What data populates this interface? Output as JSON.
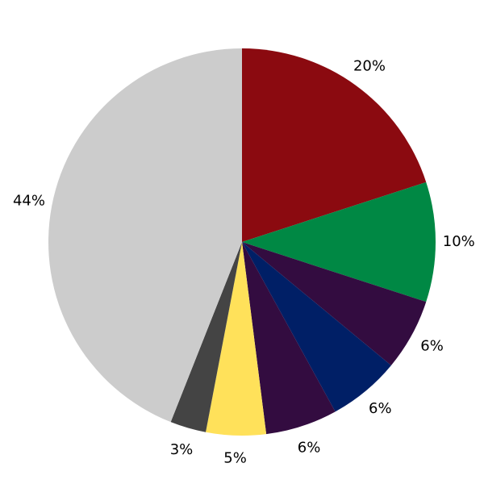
{
  "chart_data": {
    "type": "pie",
    "start_angle": "top, clockwise",
    "values": [
      20,
      10,
      6,
      6,
      6,
      5,
      3,
      44
    ],
    "labels": [
      "20%",
      "10%",
      "6%",
      "6%",
      "6%",
      "5%",
      "3%",
      "44%"
    ],
    "colors": [
      "#8b0a10",
      "#008844",
      "#330c40",
      "#001f66",
      "#330c40",
      "#ffe15a",
      "#444444",
      "#cccccc"
    ],
    "legend": "none"
  }
}
